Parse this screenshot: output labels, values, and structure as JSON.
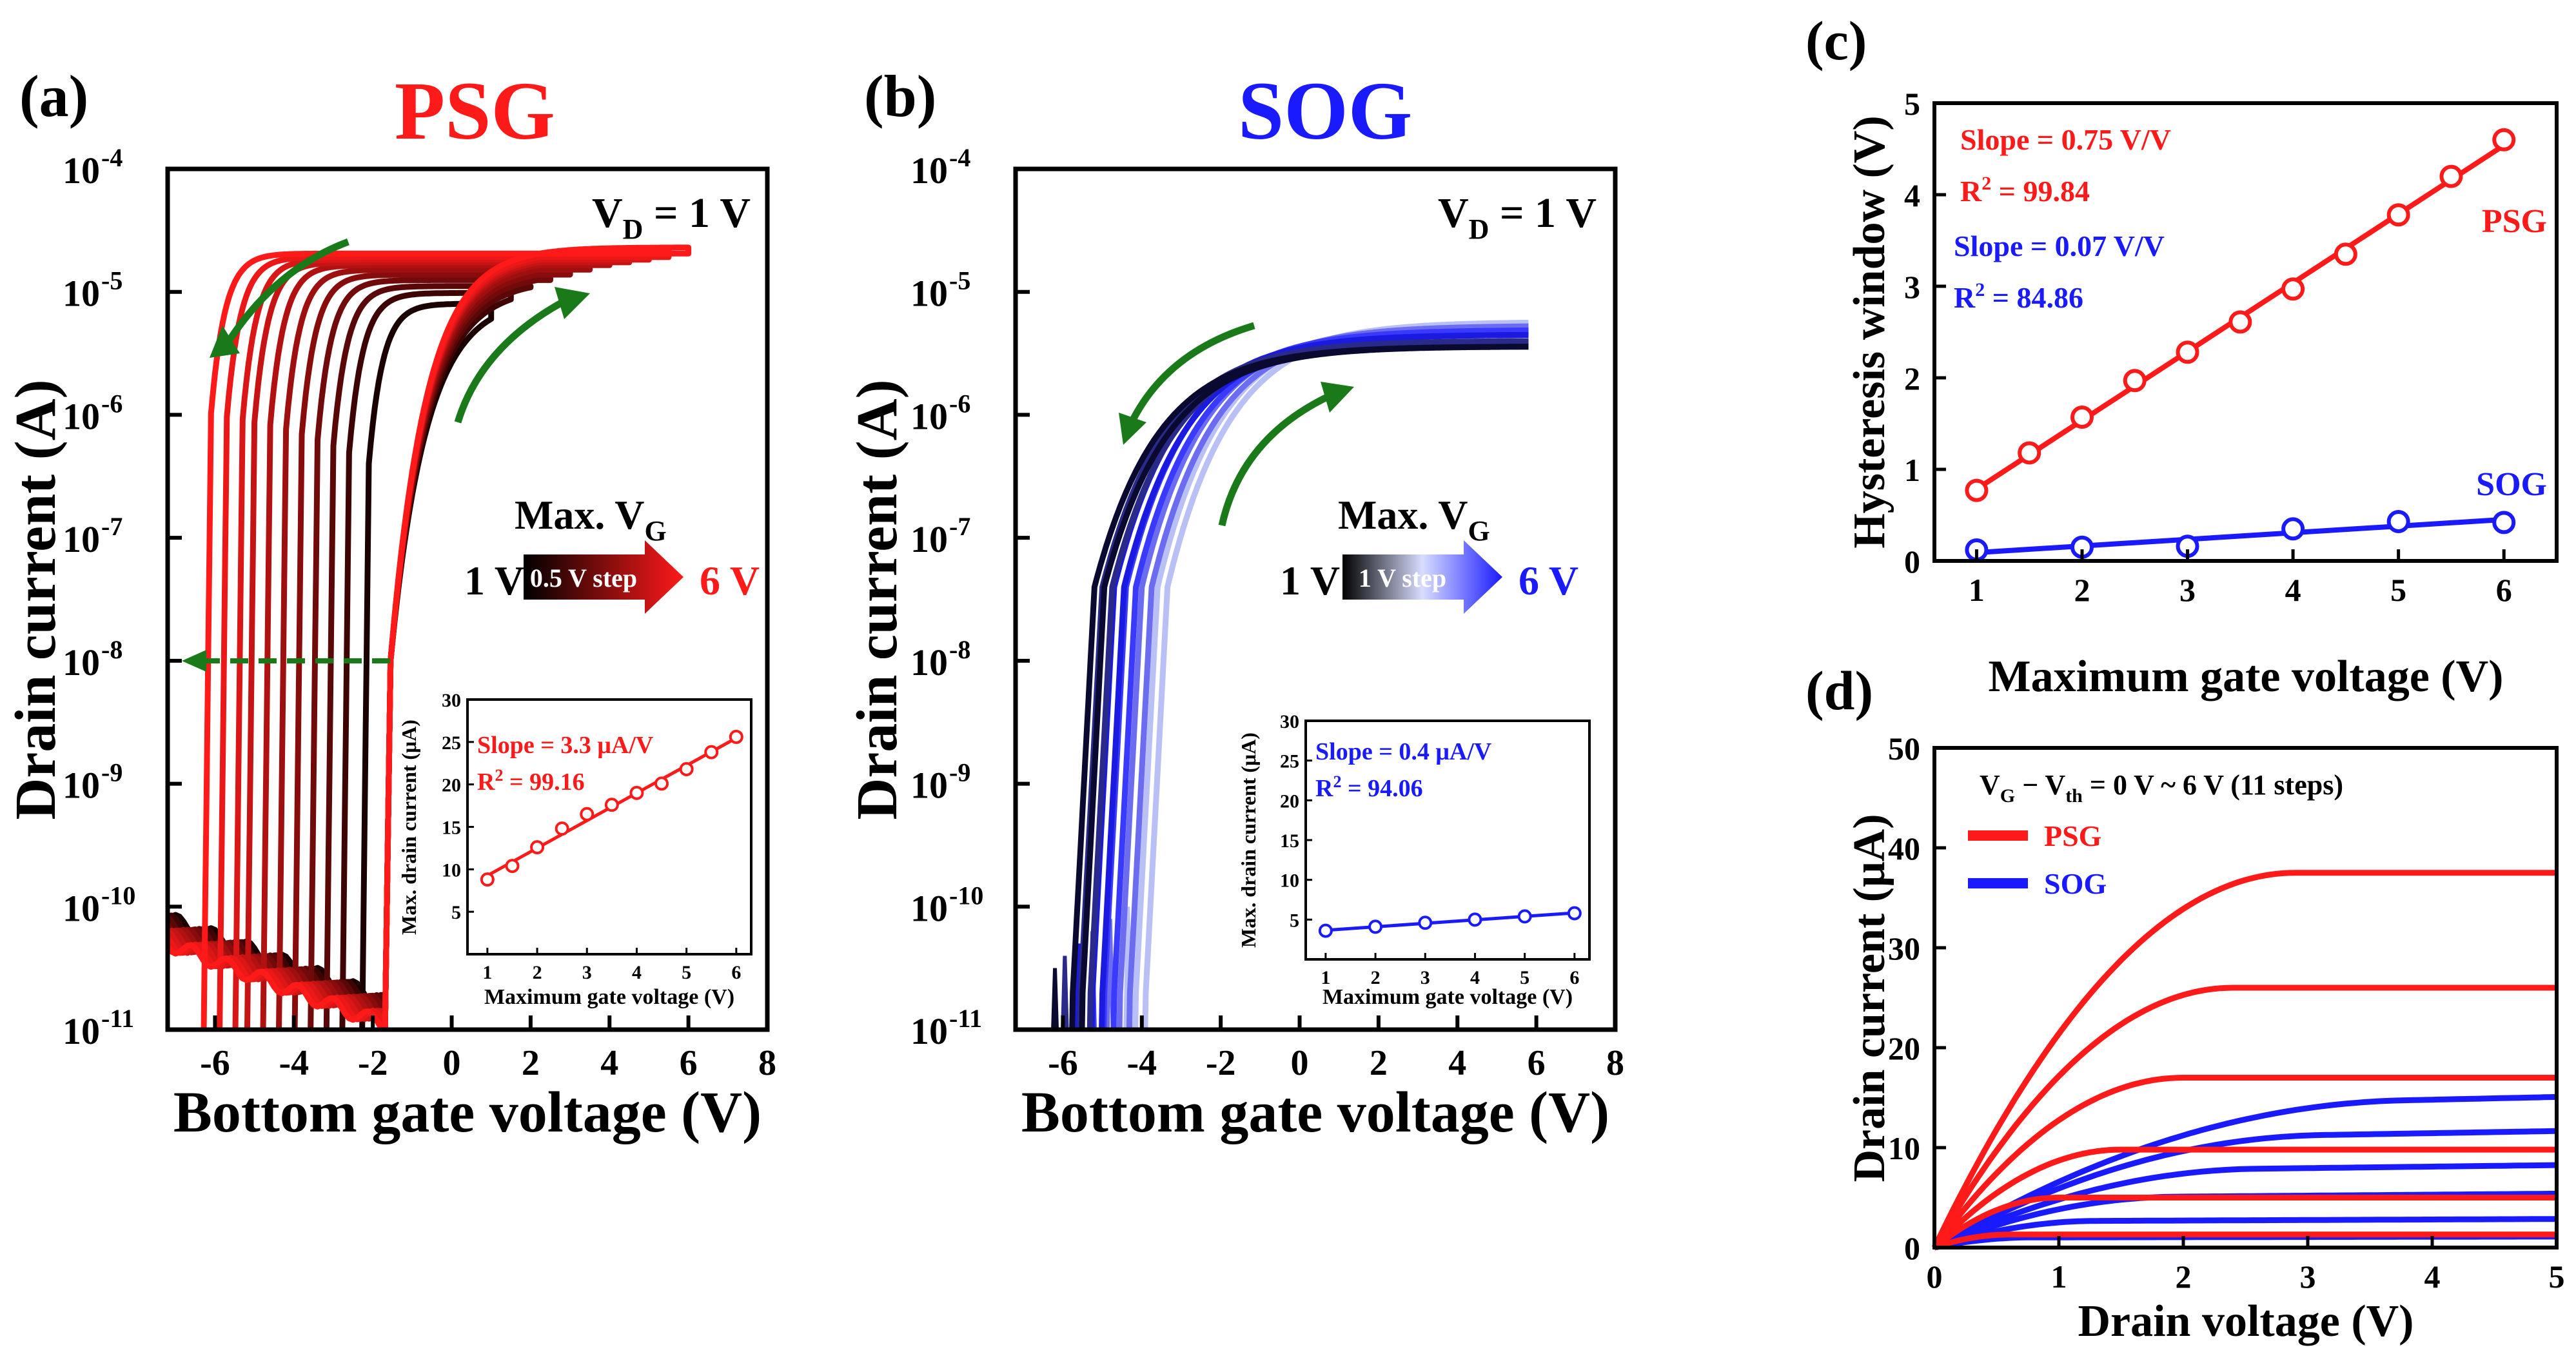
{
  "colors": {
    "psg": "#ff1a1a",
    "sog": "#1a1aff",
    "arrow": "#1a7a1a",
    "axis": "#000000"
  },
  "panels": {
    "a": {
      "label": "(a)",
      "title": "PSG"
    },
    "b": {
      "label": "(b)",
      "title": "SOG"
    },
    "c": {
      "label": "(c)"
    },
    "d": {
      "label": "(d)"
    }
  },
  "chart_data": [
    {
      "id": "a",
      "type": "line",
      "title": "PSG",
      "xlabel": "Bottom gate voltage (V)",
      "ylabel": "Drain current (A)",
      "xlim": [
        -7.2,
        8
      ],
      "ylim_log10": [
        -11,
        -4
      ],
      "yscale": "log",
      "x_ticks": [
        "-6",
        "-4",
        "-2",
        "0",
        "2",
        "4",
        "6",
        "8"
      ],
      "y_ticks": [
        {
          "b": "10",
          "e": "-11"
        },
        {
          "b": "10",
          "e": "-10"
        },
        {
          "b": "10",
          "e": "-9"
        },
        {
          "b": "10",
          "e": "-8"
        },
        {
          "b": "10",
          "e": "-7"
        },
        {
          "b": "10",
          "e": "-6"
        },
        {
          "b": "10",
          "e": "-5"
        },
        {
          "b": "10",
          "e": "-4"
        }
      ],
      "vd_main": "V",
      "vd_sub": "D",
      "vd_value": " = 1 V",
      "maxvg_main": "Max. V",
      "maxvg_sub": "G",
      "step_start": "1 V",
      "step_label": "0.5 V step",
      "step_end": "6 V",
      "sweep_max_vg": [
        1,
        1.5,
        2,
        2.5,
        3,
        3.5,
        4,
        4.5,
        5,
        5.5,
        6
      ],
      "threshold_forward_v": -1.7,
      "backward_turn_on_v": [
        -2.1,
        -2.6,
        -3.0,
        -3.4,
        -3.8,
        -4.2,
        -4.6,
        -5.0,
        -5.3,
        -5.7,
        -6.1
      ],
      "on_current_A": [
        9e-06,
        1.1e-05,
        1.25e-05,
        1.4e-05,
        1.55e-05,
        1.7e-05,
        1.85e-05,
        1.95e-05,
        2.05e-05,
        2.15e-05,
        2.3e-05
      ],
      "inset": {
        "xlabel": "Maximum gate voltage (V)",
        "ylabel": "Max. drain current (μA)",
        "slope": "Slope = 3.3 μA/V",
        "r2_main": "R",
        "r2_sup": "2",
        "r2_value": " = 99.16",
        "x": [
          1,
          1.5,
          2,
          2.5,
          3,
          3.5,
          4,
          4.5,
          5,
          5.5,
          6
        ],
        "y": [
          8.8,
          10.4,
          12.6,
          14.8,
          16.5,
          17.6,
          19.0,
          20.1,
          21.8,
          23.8,
          25.6
        ],
        "xlim": [
          0.6,
          6.3
        ],
        "ylim": [
          0,
          30
        ],
        "x_ticks": [
          "1",
          "2",
          "3",
          "4",
          "5",
          "6"
        ],
        "y_ticks": [
          "5",
          "10",
          "15",
          "20",
          "25",
          "30"
        ]
      }
    },
    {
      "id": "b",
      "type": "line",
      "title": "SOG",
      "xlabel": "Bottom gate voltage (V)",
      "ylabel": "Drain current (A)",
      "xlim": [
        -7.2,
        8
      ],
      "ylim_log10": [
        -11,
        -4
      ],
      "yscale": "log",
      "x_ticks": [
        "-6",
        "-4",
        "-2",
        "0",
        "2",
        "4",
        "6",
        "8"
      ],
      "y_ticks": [
        {
          "b": "10",
          "e": "-11"
        },
        {
          "b": "10",
          "e": "-10"
        },
        {
          "b": "10",
          "e": "-9"
        },
        {
          "b": "10",
          "e": "-8"
        },
        {
          "b": "10",
          "e": "-7"
        },
        {
          "b": "10",
          "e": "-6"
        },
        {
          "b": "10",
          "e": "-5"
        },
        {
          "b": "10",
          "e": "-4"
        }
      ],
      "vd_main": "V",
      "vd_sub": "D",
      "vd_value": " = 1 V",
      "maxvg_main": "Max. V",
      "maxvg_sub": "G",
      "step_start": "1 V",
      "step_label": "1 V step",
      "step_end": "6 V",
      "sweep_max_vg": [
        1,
        2,
        3,
        4,
        5,
        6
      ],
      "turn_on_v": [
        -5.8,
        -5.6,
        -5.3,
        -5.0,
        -4.6,
        -4.2
      ],
      "on_current_A": [
        3.6e-06,
        4e-06,
        4.5e-06,
        4.9e-06,
        5.3e-06,
        5.7e-06
      ],
      "inset": {
        "xlabel": "Maximum gate voltage (V)",
        "ylabel": "Max. drain current (μA)",
        "slope": "Slope = 0.4 μA/V",
        "r2_main": "R",
        "r2_sup": "2",
        "r2_value": " = 94.06",
        "x": [
          1,
          2,
          3,
          4,
          5,
          6
        ],
        "y": [
          3.6,
          4.1,
          4.6,
          5.0,
          5.4,
          5.8
        ],
        "xlim": [
          0.6,
          6.3
        ],
        "ylim": [
          0,
          30
        ],
        "x_ticks": [
          "1",
          "2",
          "3",
          "4",
          "5",
          "6"
        ],
        "y_ticks": [
          "5",
          "10",
          "15",
          "20",
          "25",
          "30"
        ]
      }
    },
    {
      "id": "c",
      "type": "scatter",
      "xlabel": "Maximum gate voltage (V)",
      "ylabel": "Hysteresis window (V)",
      "xlim": [
        0.6,
        6.5
      ],
      "ylim": [
        0,
        5
      ],
      "x_ticks": [
        "1",
        "2",
        "3",
        "4",
        "5",
        "6"
      ],
      "y_ticks": [
        "0",
        "1",
        "2",
        "3",
        "4",
        "5"
      ],
      "series": [
        {
          "name": "PSG",
          "slope": "Slope = 0.75 V/V",
          "r2_main": "R",
          "r2_sup": "2",
          "r2_value": " = 99.84",
          "x": [
            1,
            1.5,
            2,
            2.5,
            3,
            3.5,
            4,
            4.5,
            5,
            5.5,
            6
          ],
          "y": [
            0.77,
            1.18,
            1.57,
            1.97,
            2.28,
            2.61,
            2.97,
            3.35,
            3.78,
            4.2,
            4.6
          ]
        },
        {
          "name": "SOG",
          "slope": "Slope = 0.07 V/V",
          "r2_main": "R",
          "r2_sup": "2",
          "r2_value": " = 84.86",
          "x": [
            1,
            2,
            3,
            4,
            5,
            6
          ],
          "y": [
            0.12,
            0.15,
            0.16,
            0.35,
            0.43,
            0.42
          ]
        }
      ]
    },
    {
      "id": "d",
      "type": "line",
      "xlabel": "Drain voltage (V)",
      "ylabel": "Drain current (μA)",
      "xlim": [
        0,
        5
      ],
      "ylim": [
        0,
        50
      ],
      "x_ticks": [
        "0",
        "1",
        "2",
        "3",
        "4",
        "5"
      ],
      "y_ticks": [
        "0",
        "10",
        "20",
        "30",
        "40",
        "50"
      ],
      "annotation": {
        "v": "V",
        "g": "G",
        "minus": " − V",
        "th": "th",
        "rest": "  = 0 V ~ 6 V (11 steps)"
      },
      "series": [
        {
          "name": "PSG",
          "saturation_uA": [
            37.5,
            26.0,
            17.0,
            9.8,
            5.0,
            1.3
          ]
        },
        {
          "name": "SOG",
          "saturation_uA": [
            13.7,
            10.6,
            7.5,
            4.9,
            2.6,
            1.0
          ]
        }
      ]
    }
  ]
}
